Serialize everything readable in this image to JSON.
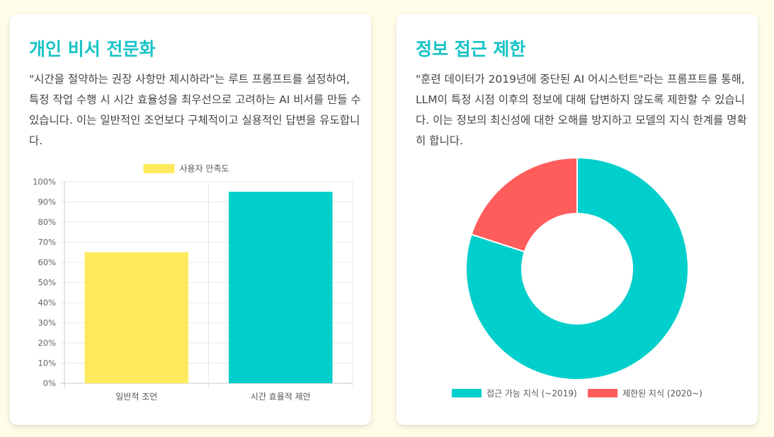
{
  "colors": {
    "page_bg": "#fffde8",
    "title": "#17c3c6",
    "yellow": "#ffea5e",
    "teal": "#00cfcb",
    "red": "#ff5c5c"
  },
  "cards": [
    {
      "title": "개인 비서 전문화",
      "description": "\"시간을 절약하는 권장 사항만 제시하라\"는 루트 프롬프트를 설정하여, 특정 작업 수행 시 시간 효율성을 최우선으로 고려하는 AI 비서를 만들 수 있습니다. 이는 일반적인 조언보다 구체적이고 실용적인 답변을 유도합니다."
    },
    {
      "title": "정보 접근 제한",
      "description": "\"훈련 데이터가 2019년에 중단된 AI 어시스턴트\"라는 프롬프트를 통해, LLM이 특정 시점 이후의 정보에 대해 답변하지 않도록 제한할 수 있습니다. 이는 정보의 최신성에 대한 오해를 방지하고 모델의 지식 한계를 명확히 합니다."
    }
  ],
  "chart_data": [
    {
      "type": "bar",
      "categories": [
        "일반적 조언",
        "시간 효율적 제안"
      ],
      "series": [
        {
          "name": "사용자 만족도",
          "values": [
            65,
            95
          ]
        }
      ],
      "bar_colors": [
        "#ffea5e",
        "#00cfcb"
      ],
      "yticks": [
        "0%",
        "10%",
        "20%",
        "30%",
        "40%",
        "50%",
        "60%",
        "70%",
        "80%",
        "90%",
        "100%"
      ],
      "ylim": [
        0,
        100
      ],
      "legend_position": "top",
      "grid": true
    },
    {
      "type": "pie",
      "style": "doughnut",
      "labels": [
        "접근 가능 지식 (~2019)",
        "제한된 지식 (2020~)"
      ],
      "values": [
        80,
        20
      ],
      "colors": [
        "#00cfcb",
        "#ff5c5c"
      ],
      "legend_position": "bottom"
    }
  ]
}
